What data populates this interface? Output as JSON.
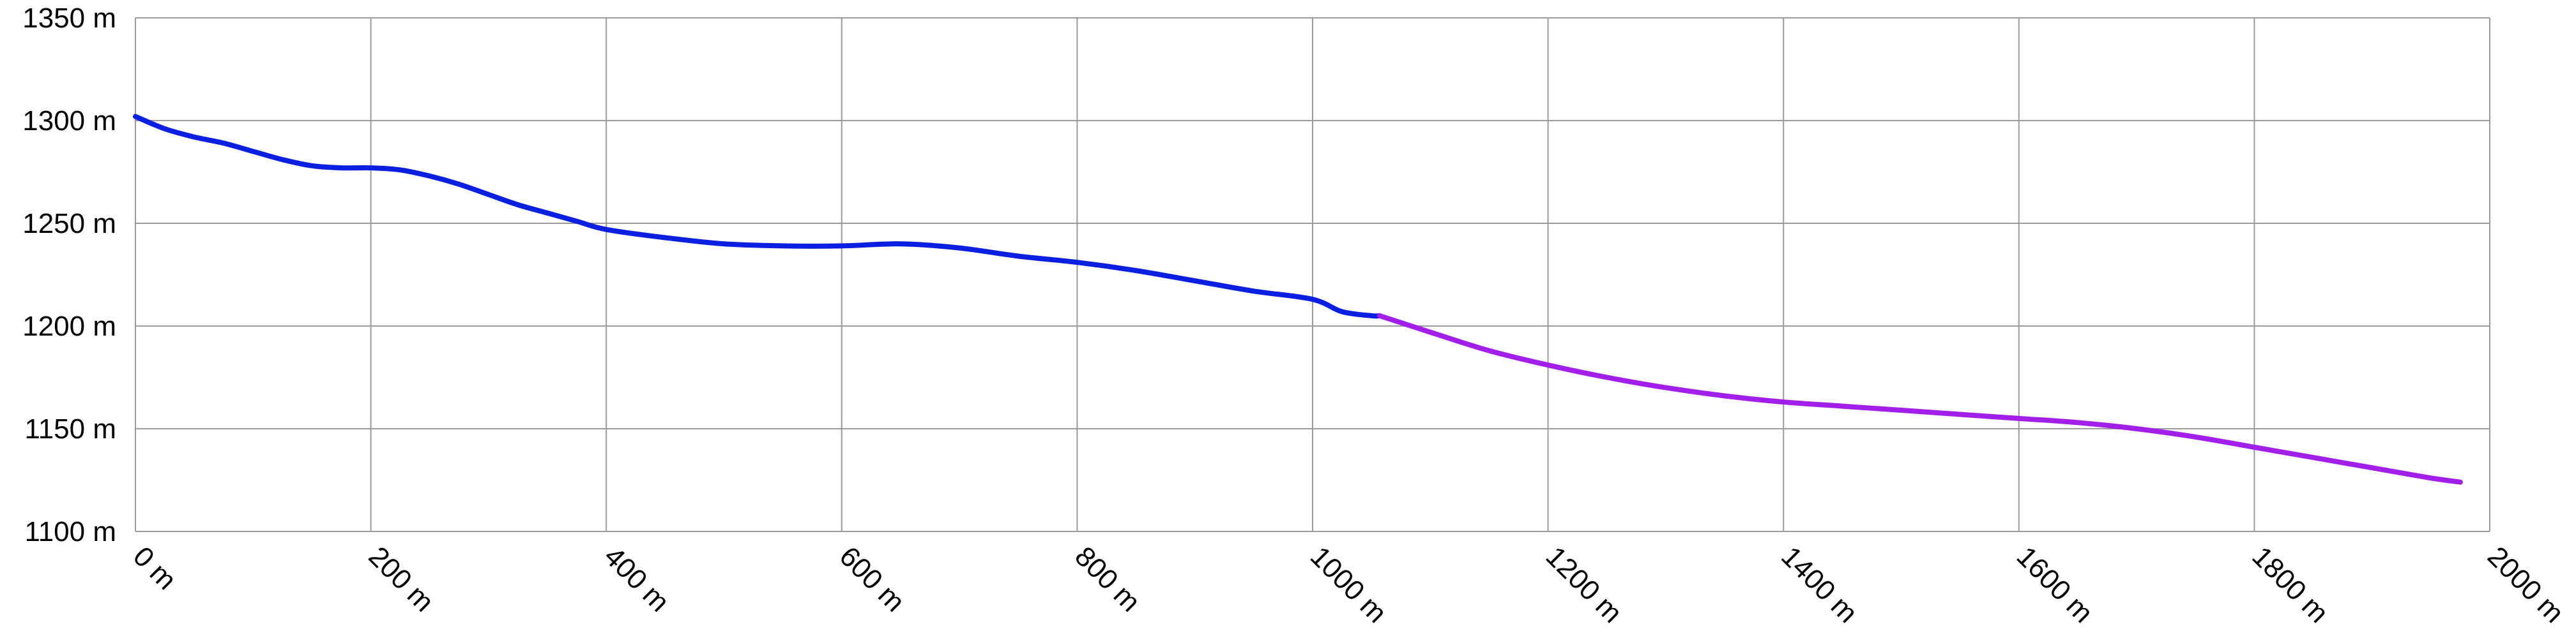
{
  "chart_data": {
    "type": "line",
    "title": "",
    "xlabel": "",
    "ylabel": "",
    "xlim": [
      0,
      2000
    ],
    "ylim": [
      1100,
      1350
    ],
    "x_ticks": [
      0,
      200,
      400,
      600,
      800,
      1000,
      1200,
      1400,
      1600,
      1800,
      2000
    ],
    "y_ticks": [
      1100,
      1150,
      1200,
      1250,
      1300,
      1350
    ],
    "x_tick_labels": [
      "0 m",
      "200 m",
      "400 m",
      "600 m",
      "800 m",
      "1000 m",
      "1200 m",
      "1400 m",
      "1600 m",
      "1800 m",
      "2000 m"
    ],
    "y_tick_labels": [
      "1100 m",
      "1150 m",
      "1200 m",
      "1250 m",
      "1300 m",
      "1350 m"
    ],
    "grid": true,
    "series": [
      {
        "color": "#0a1fe0",
        "x": [
          0,
          25,
          50,
          75,
          100,
          125,
          150,
          175,
          200,
          225,
          250,
          275,
          300,
          325,
          350,
          375,
          400,
          450,
          500,
          550,
          600,
          650,
          700,
          750,
          800,
          850,
          900,
          950,
          1000,
          1025,
          1050,
          1057
        ],
        "y": [
          1302,
          1296,
          1292,
          1289,
          1285,
          1281,
          1278,
          1277,
          1277,
          1276,
          1273,
          1269,
          1264,
          1259,
          1255,
          1251,
          1247,
          1243,
          1240,
          1239,
          1239,
          1240,
          1238,
          1234,
          1231,
          1227,
          1222,
          1217,
          1213,
          1207,
          1205,
          1205
        ]
      },
      {
        "color": "#a11fe8",
        "x": [
          1057,
          1100,
          1150,
          1200,
          1250,
          1300,
          1350,
          1400,
          1450,
          1500,
          1550,
          1600,
          1650,
          1700,
          1750,
          1800,
          1850,
          1900,
          1950,
          1975
        ],
        "y": [
          1205,
          1197,
          1188,
          1181,
          1175,
          1170,
          1166,
          1163,
          1161,
          1159,
          1157,
          1155,
          1153,
          1150,
          1146,
          1141,
          1136,
          1131,
          1126,
          1124
        ]
      }
    ]
  }
}
